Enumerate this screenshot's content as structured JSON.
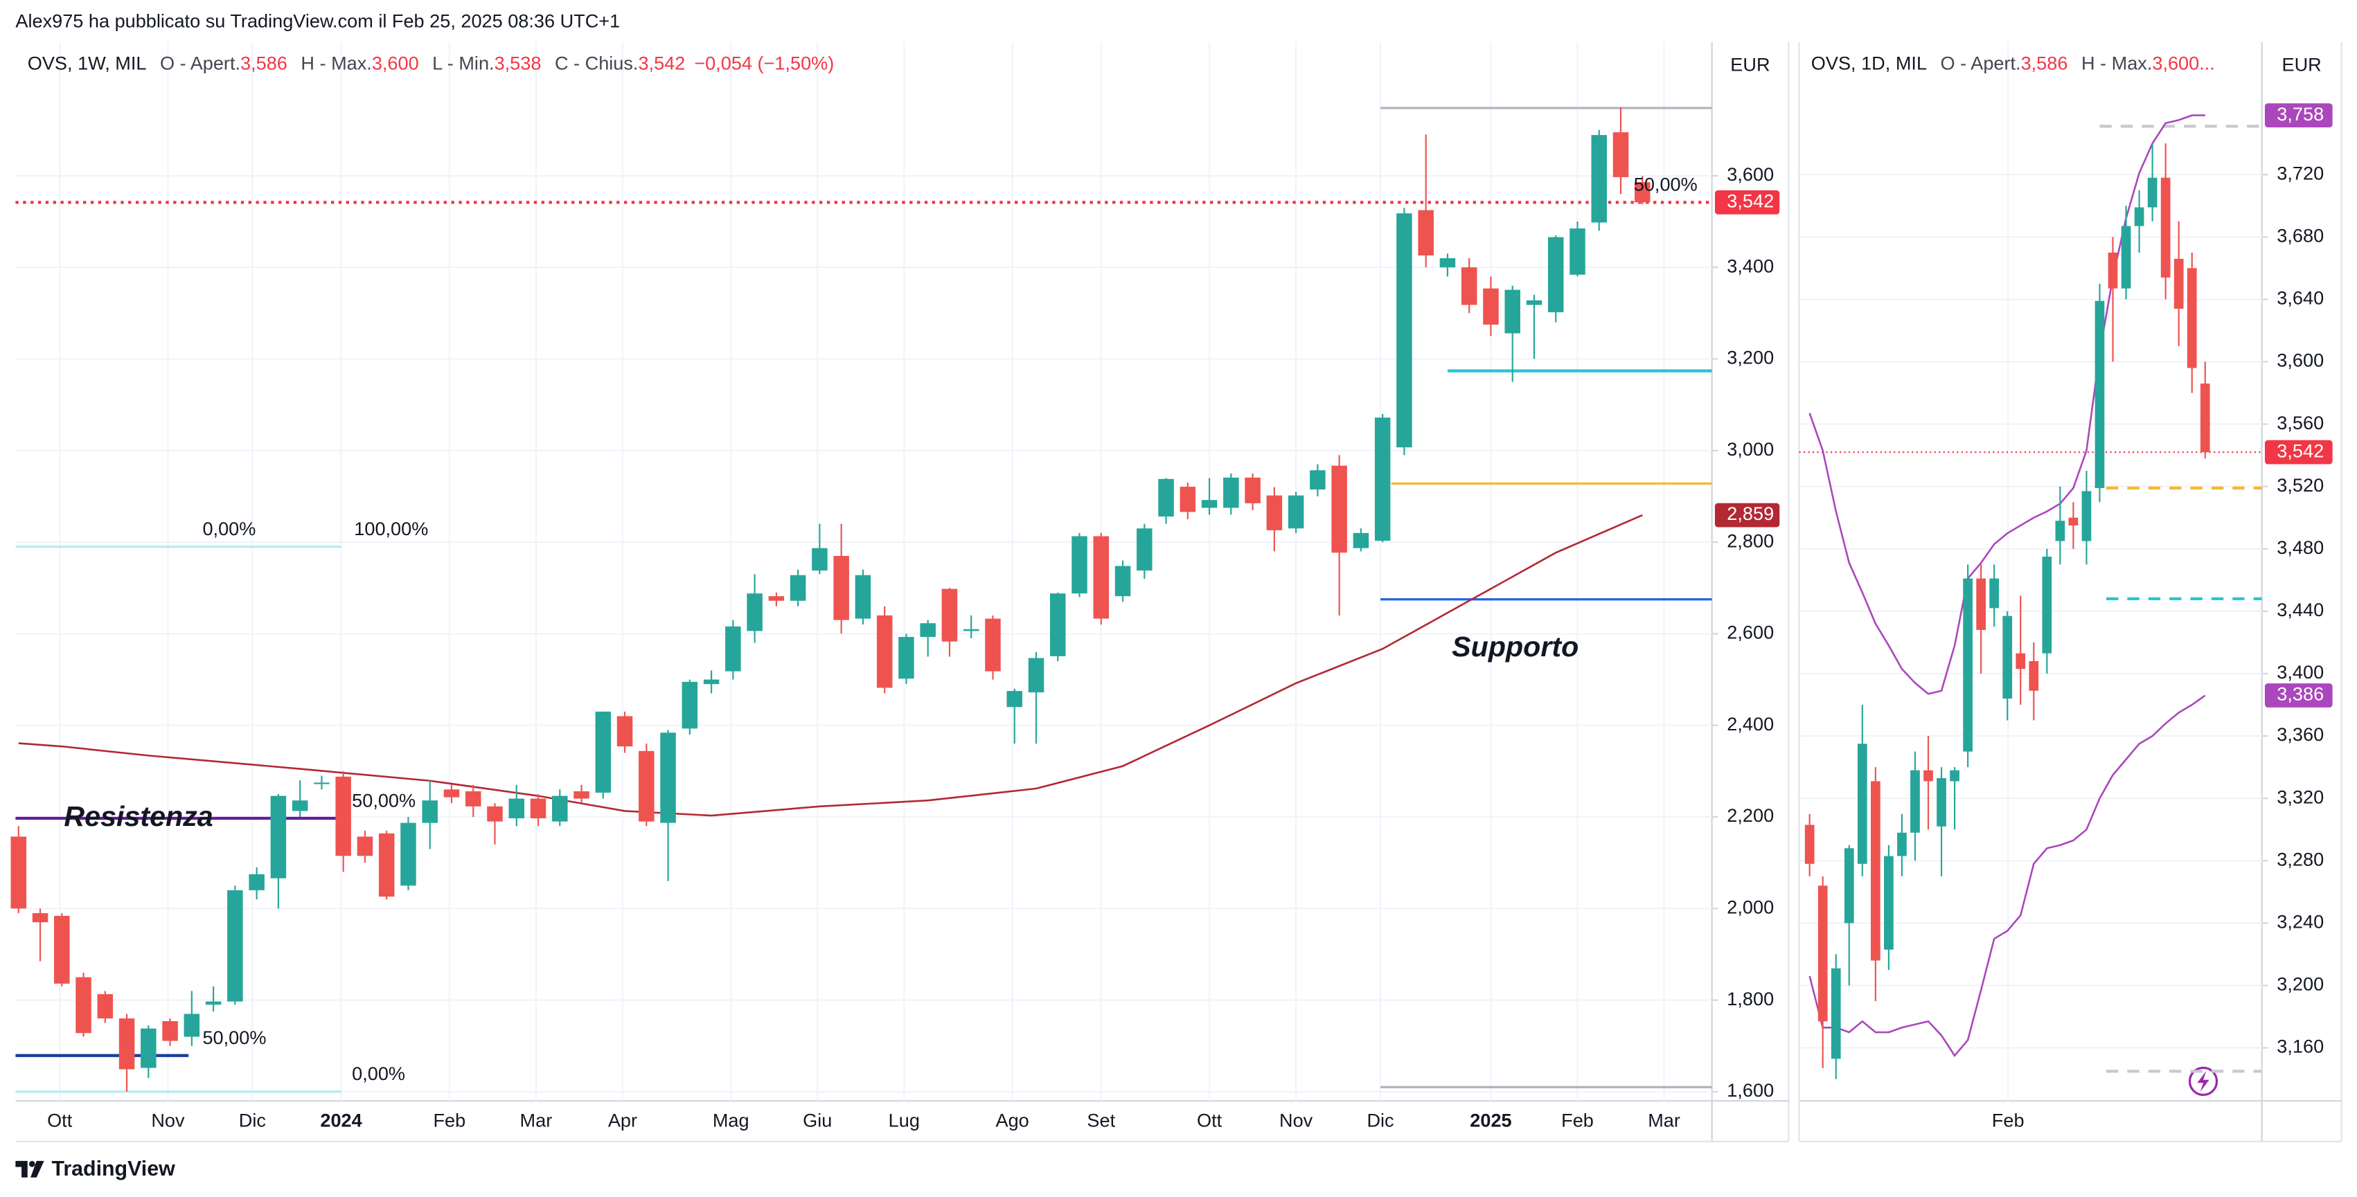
{
  "header": {
    "publisher": "Alex975 ha pubblicato su TradingView.com il Feb 25, 2025 08:36 UTC+1"
  },
  "footer": {
    "brand": "TradingView"
  },
  "chart_data": [
    {
      "type": "candlestick",
      "symbol": "OVS, 1W, MIL",
      "legend_items": [
        {
          "key": "O - Apert.",
          "text": "3,586"
        },
        {
          "key": "H - Max.",
          "text": "3,600"
        },
        {
          "key": "L - Min.",
          "text": "3,538"
        },
        {
          "key": "C - Chius.",
          "text": "3,542"
        }
      ],
      "change": "−0,054 (−1,50%)",
      "currency": "EUR",
      "up_color": "#26a69a",
      "down_color": "#ef5350",
      "open": [
        2.157,
        1.99,
        1.984,
        1.85,
        1.813,
        1.76,
        1.652,
        1.754,
        1.72,
        1.79,
        1.797,
        2.04,
        2.066,
        2.213,
        2.272,
        2.288,
        2.157,
        2.164,
        2.05,
        2.187,
        2.26,
        2.256,
        2.223,
        2.197,
        2.24,
        2.19,
        2.256,
        2.253,
        2.42,
        2.344,
        2.187,
        2.393,
        2.49,
        2.518,
        2.606,
        2.682,
        2.672,
        2.738,
        2.77,
        2.633,
        2.64,
        2.502,
        2.593,
        2.698,
        2.606,
        2.633,
        2.44,
        2.472,
        2.551,
        2.688,
        2.813,
        2.682,
        2.738,
        2.856,
        2.921,
        2.875,
        2.875,
        2.941,
        2.902,
        2.83,
        2.915,
        2.967,
        2.787,
        2.803,
        3.007,
        3.525,
        3.4,
        3.4,
        3.354,
        3.256,
        3.318,
        3.302,
        3.384,
        3.498,
        3.695,
        3.586
      ],
      "high": [
        2.18,
        2.0,
        1.99,
        1.86,
        1.82,
        1.77,
        1.745,
        1.76,
        1.82,
        1.83,
        2.05,
        2.09,
        2.25,
        2.28,
        2.29,
        2.3,
        2.17,
        2.17,
        2.2,
        2.28,
        2.27,
        2.27,
        2.23,
        2.27,
        2.25,
        2.26,
        2.27,
        2.43,
        2.43,
        2.36,
        2.39,
        2.5,
        2.52,
        2.63,
        2.73,
        2.69,
        2.74,
        2.84,
        2.84,
        2.74,
        2.66,
        2.6,
        2.63,
        2.7,
        2.64,
        2.64,
        2.48,
        2.56,
        2.69,
        2.82,
        2.82,
        2.76,
        2.84,
        2.94,
        2.93,
        2.94,
        2.95,
        2.95,
        2.92,
        2.91,
        2.97,
        2.99,
        2.83,
        3.08,
        3.53,
        3.69,
        3.43,
        3.42,
        3.38,
        3.36,
        3.34,
        3.47,
        3.5,
        3.7,
        3.75,
        3.6
      ],
      "low": [
        1.99,
        1.885,
        1.83,
        1.72,
        1.75,
        1.6,
        1.63,
        1.7,
        1.7,
        1.775,
        1.79,
        2.02,
        2.0,
        2.2,
        2.26,
        2.08,
        2.1,
        2.02,
        2.04,
        2.13,
        2.23,
        2.2,
        2.14,
        2.18,
        2.18,
        2.18,
        2.23,
        2.24,
        2.34,
        2.18,
        2.06,
        2.38,
        2.47,
        2.5,
        2.58,
        2.66,
        2.66,
        2.73,
        2.6,
        2.62,
        2.47,
        2.49,
        2.55,
        2.55,
        2.59,
        2.5,
        2.36,
        2.36,
        2.54,
        2.68,
        2.62,
        2.67,
        2.72,
        2.84,
        2.85,
        2.86,
        2.86,
        2.87,
        2.78,
        2.82,
        2.9,
        2.64,
        2.78,
        2.8,
        2.99,
        3.4,
        3.38,
        3.3,
        3.25,
        3.15,
        3.2,
        3.28,
        3.38,
        3.48,
        3.56,
        3.538
      ],
      "close": [
        2.0,
        1.97,
        1.836,
        1.728,
        1.76,
        1.649,
        1.738,
        1.711,
        1.77,
        1.797,
        2.04,
        2.075,
        2.246,
        2.236,
        2.275,
        2.115,
        2.115,
        2.026,
        2.187,
        2.236,
        2.243,
        2.223,
        2.19,
        2.24,
        2.197,
        2.246,
        2.24,
        2.43,
        2.354,
        2.19,
        2.384,
        2.495,
        2.5,
        2.616,
        2.688,
        2.672,
        2.728,
        2.787,
        2.63,
        2.728,
        2.482,
        2.593,
        2.623,
        2.583,
        2.61,
        2.518,
        2.475,
        2.547,
        2.688,
        2.813,
        2.633,
        2.748,
        2.83,
        2.938,
        2.866,
        2.892,
        2.941,
        2.885,
        2.826,
        2.902,
        2.957,
        2.777,
        2.82,
        3.072,
        3.518,
        3.426,
        3.42,
        3.318,
        3.275,
        3.351,
        3.328,
        3.466,
        3.485,
        3.689,
        3.597,
        3.542
      ],
      "overlays": [
        {
          "color": "#b22833",
          "x": [
            0,
            2,
            6,
            13,
            19,
            24,
            28,
            32,
            37,
            42,
            47,
            51,
            55,
            59,
            63,
            67,
            71,
            75
          ],
          "values": [
            2.361,
            2.354,
            2.334,
            2.305,
            2.279,
            2.246,
            2.213,
            2.203,
            2.223,
            2.236,
            2.262,
            2.311,
            2.4,
            2.492,
            2.567,
            2.672,
            2.777,
            2.859
          ]
        }
      ],
      "levels": [
        {
          "value": 3.542,
          "color": "#f23645",
          "style": "dotted"
        },
        {
          "value": 3.748,
          "color": "#b2b5be",
          "style": "solid",
          "x0": 62.9
        },
        {
          "value": 1.61,
          "color": "#b2b5be",
          "style": "solid",
          "x0": 62.9
        },
        {
          "value": 3.174,
          "color": "#26c6da",
          "style": "thick",
          "x0": 66.0
        },
        {
          "value": 2.928,
          "color": "#f5b82e",
          "style": "solid",
          "x0": 63.4
        },
        {
          "value": 2.675,
          "color": "#1e63e9",
          "style": "solid",
          "x0": 62.9
        },
        {
          "value": 2.197,
          "color": "#6a1b9a",
          "style": "thick",
          "x1": 14.9
        },
        {
          "value": 1.679,
          "color": "#1a3d9e",
          "style": "thick",
          "x1": 7.85
        },
        {
          "value": 2.79,
          "color": "#b2ebf2",
          "style": "solid",
          "x1": 14.9
        },
        {
          "value": 1.6,
          "color": "#b2ebf2",
          "style": "solid",
          "x1": 14.9
        }
      ],
      "annotations": [
        {
          "text": "0,00%",
          "x": 8.5,
          "y": 2.79,
          "color": "#b2dfe6",
          "style": "label"
        },
        {
          "text": "100,00%",
          "x": 15.5,
          "y": 2.79,
          "color": "#b2dfe6",
          "style": "label"
        },
        {
          "text": "50,00%",
          "x": 15.4,
          "y": 2.197,
          "color": "#5e35b1",
          "style": "label"
        },
        {
          "text": "50,00%",
          "x": 8.5,
          "y": 1.679,
          "color": "#1848cc",
          "style": "label"
        },
        {
          "text": "0,00%",
          "x": 15.4,
          "y": 1.6,
          "color": "#b2dfe6",
          "style": "label"
        },
        {
          "text": "50,00%",
          "x": 74.6,
          "y": 3.542,
          "color": "#f23645",
          "style": "label"
        },
        {
          "text": "Resistenza",
          "x": 2.1,
          "y": 2.197,
          "color": "#7b1fa2",
          "style": "headline"
        },
        {
          "text": "Supporto",
          "x": 66.2,
          "y": 2.567,
          "color": "#2f6fe4",
          "style": "headline"
        }
      ],
      "badges": [
        {
          "value": 3.542,
          "label": "3,542",
          "color": "#f23645"
        },
        {
          "value": 2.859,
          "label": "2,859",
          "color": "#b22833"
        }
      ],
      "xlim": [
        -0.14,
        78.21
      ],
      "ylim": [
        1.58,
        3.892
      ],
      "xticks": [
        {
          "value": 1.9,
          "label": "Ott"
        },
        {
          "value": 6.9,
          "label": "Nov"
        },
        {
          "value": 10.8,
          "label": "Dic"
        },
        {
          "value": 14.9,
          "label": "2024"
        },
        {
          "value": 19.9,
          "label": "Feb"
        },
        {
          "value": 23.9,
          "label": "Mar"
        },
        {
          "value": 27.9,
          "label": "Apr"
        },
        {
          "value": 32.9,
          "label": "Mag"
        },
        {
          "value": 36.9,
          "label": "Giu"
        },
        {
          "value": 40.9,
          "label": "Lug"
        },
        {
          "value": 45.9,
          "label": "Ago"
        },
        {
          "value": 50.0,
          "label": "Set"
        },
        {
          "value": 55.0,
          "label": "Ott"
        },
        {
          "value": 59.0,
          "label": "Nov"
        },
        {
          "value": 62.9,
          "label": "Dic"
        },
        {
          "value": 68.0,
          "label": "2025"
        },
        {
          "value": 72.0,
          "label": "Feb"
        },
        {
          "value": 76.0,
          "label": "Mar"
        }
      ],
      "yticks": [
        {
          "value": 1.6,
          "label": "1,600"
        },
        {
          "value": 1.8,
          "label": "1,800"
        },
        {
          "value": 2.0,
          "label": "2,000"
        },
        {
          "value": 2.2,
          "label": "2,200"
        },
        {
          "value": 2.4,
          "label": "2,400"
        },
        {
          "value": 2.6,
          "label": "2,600"
        },
        {
          "value": 2.8,
          "label": "2,800"
        },
        {
          "value": 3.0,
          "label": "3,000"
        },
        {
          "value": 3.2,
          "label": "3,200"
        },
        {
          "value": 3.4,
          "label": "3,400"
        },
        {
          "value": 3.6,
          "label": "3,600"
        }
      ],
      "grid": true
    },
    {
      "type": "candlestick",
      "symbol": "OVS, 1D, MIL",
      "legend_items": [
        {
          "key": "O - Apert.",
          "text": "3,586"
        },
        {
          "key": "H - Max.",
          "text": "3,600..."
        }
      ],
      "currency": "EUR",
      "up_color": "#26a69a",
      "down_color": "#ef5350",
      "open": [
        3.303,
        3.264,
        3.153,
        3.24,
        3.278,
        3.331,
        3.223,
        3.283,
        3.298,
        3.338,
        3.302,
        3.331,
        3.35,
        3.461,
        3.442,
        3.384,
        3.413,
        3.408,
        3.413,
        3.485,
        3.5,
        3.485,
        3.519,
        3.67,
        3.647,
        3.687,
        3.699,
        3.718,
        3.666,
        3.66,
        3.586
      ],
      "high": [
        3.31,
        3.27,
        3.22,
        3.29,
        3.38,
        3.34,
        3.29,
        3.31,
        3.35,
        3.36,
        3.34,
        3.34,
        3.47,
        3.47,
        3.47,
        3.44,
        3.45,
        3.42,
        3.48,
        3.52,
        3.51,
        3.53,
        3.65,
        3.68,
        3.7,
        3.71,
        3.74,
        3.74,
        3.69,
        3.67,
        3.6
      ],
      "low": [
        3.27,
        3.147,
        3.14,
        3.2,
        3.27,
        3.19,
        3.21,
        3.27,
        3.28,
        3.3,
        3.27,
        3.3,
        3.34,
        3.4,
        3.43,
        3.37,
        3.38,
        3.37,
        3.4,
        3.47,
        3.48,
        3.47,
        3.51,
        3.6,
        3.64,
        3.67,
        3.69,
        3.64,
        3.61,
        3.58,
        3.538
      ],
      "close": [
        3.278,
        3.177,
        3.211,
        3.288,
        3.355,
        3.216,
        3.283,
        3.298,
        3.338,
        3.331,
        3.333,
        3.338,
        3.461,
        3.428,
        3.461,
        3.437,
        3.403,
        3.389,
        3.475,
        3.498,
        3.495,
        3.517,
        3.639,
        3.647,
        3.687,
        3.699,
        3.718,
        3.654,
        3.634,
        3.596,
        3.542
      ],
      "overlays": [
        {
          "color": "#ab47bc",
          "values": [
            3.567,
            3.543,
            3.504,
            3.471,
            3.452,
            3.432,
            3.418,
            3.403,
            3.394,
            3.387,
            3.389,
            3.418,
            3.461,
            3.471,
            3.483,
            3.49,
            3.495,
            3.5,
            3.504,
            3.509,
            3.519,
            3.543,
            3.606,
            3.654,
            3.692,
            3.721,
            3.74,
            3.753,
            3.755,
            3.758,
            3.758
          ]
        },
        {
          "color": "#ab47bc",
          "values": [
            3.206,
            3.173,
            3.173,
            3.17,
            3.177,
            3.17,
            3.17,
            3.173,
            3.175,
            3.177,
            3.168,
            3.155,
            3.165,
            3.197,
            3.23,
            3.235,
            3.245,
            3.278,
            3.288,
            3.29,
            3.293,
            3.3,
            3.32,
            3.335,
            3.345,
            3.355,
            3.36,
            3.368,
            3.375,
            3.38,
            3.386
          ]
        }
      ],
      "levels": [
        {
          "value": 3.542,
          "color": "#f23645",
          "style": "dotted-thin"
        },
        {
          "value": 3.751,
          "color": "#c7c9d0",
          "style": "dashed",
          "x0": 22.0
        },
        {
          "value": 3.519,
          "color": "#f5b82e",
          "style": "dashed",
          "x0": 22.5
        },
        {
          "value": 3.448,
          "color": "#26c6da",
          "style": "dashed",
          "x0": 22.5
        },
        {
          "value": 3.145,
          "color": "#c7c9d0",
          "style": "dashed",
          "x0": 22.5
        }
      ],
      "badges": [
        {
          "value": 3.758,
          "label": "3,758",
          "color": "#ab47bc"
        },
        {
          "value": 3.542,
          "label": "3,542",
          "color": "#f23645"
        },
        {
          "value": 3.386,
          "label": "3,386",
          "color": "#ab47bc"
        }
      ],
      "xlim": [
        -0.8,
        34.3
      ],
      "ylim": [
        3.126,
        3.805
      ],
      "xticks": [
        {
          "value": 15.05,
          "label": "Feb"
        }
      ],
      "yticks": [
        {
          "value": 3.16,
          "label": "3,160"
        },
        {
          "value": 3.2,
          "label": "3,200"
        },
        {
          "value": 3.24,
          "label": "3,240"
        },
        {
          "value": 3.28,
          "label": "3,280"
        },
        {
          "value": 3.32,
          "label": "3,320"
        },
        {
          "value": 3.36,
          "label": "3,360"
        },
        {
          "value": 3.4,
          "label": "3,400"
        },
        {
          "value": 3.44,
          "label": "3,440"
        },
        {
          "value": 3.48,
          "label": "3,480"
        },
        {
          "value": 3.52,
          "label": "3,520"
        },
        {
          "value": 3.56,
          "label": "3,560"
        },
        {
          "value": 3.6,
          "label": "3,600"
        },
        {
          "value": 3.64,
          "label": "3,640"
        },
        {
          "value": 3.68,
          "label": "3,680"
        },
        {
          "value": 3.72,
          "label": "3,720"
        }
      ],
      "grid": true
    }
  ]
}
